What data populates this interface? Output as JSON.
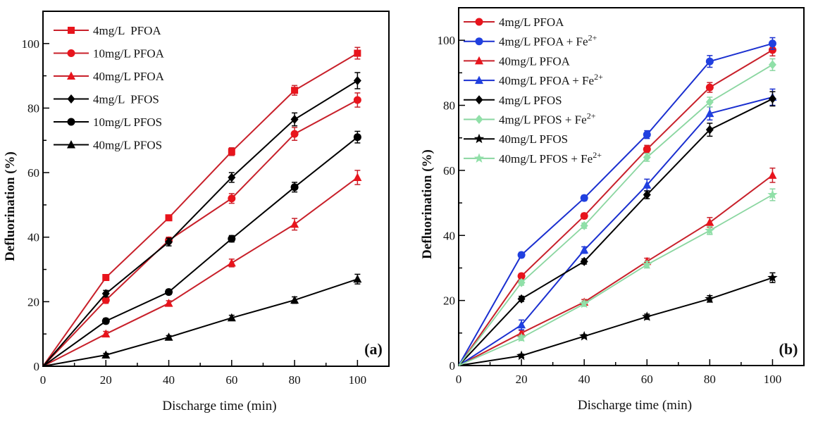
{
  "chart_data": [
    {
      "type": "line",
      "panel_label": "(a)",
      "xlabel": "Discharge time (min)",
      "ylabel": "Defluorination (%)",
      "xlim": [
        0,
        110
      ],
      "ylim": [
        0,
        110
      ],
      "xticks": [
        0,
        20,
        40,
        60,
        80,
        100
      ],
      "yticks": [
        0,
        20,
        40,
        60,
        80,
        100
      ],
      "grid": false,
      "legend_position": "top-left",
      "x": [
        0,
        20,
        40,
        60,
        80,
        100
      ],
      "series": [
        {
          "name": "4mg/L  PFOA",
          "color": "#e8141c",
          "line_color": "#c8202a",
          "marker": "square",
          "values": [
            0,
            27.5,
            46,
            66.5,
            85.5,
            97
          ],
          "errors": [
            0,
            0.8,
            0.8,
            1.2,
            1.5,
            1.8
          ]
        },
        {
          "name": "10mg/L PFOA",
          "color": "#e8141c",
          "line_color": "#c8202a",
          "marker": "circle",
          "values": [
            0,
            20.5,
            39,
            52,
            72,
            82.5
          ],
          "errors": [
            0,
            1.0,
            1.0,
            1.5,
            2.0,
            2.2
          ]
        },
        {
          "name": "40mg/L PFOA",
          "color": "#e8141c",
          "line_color": "#c8202a",
          "marker": "triangle",
          "values": [
            0,
            10,
            19.5,
            32,
            44,
            58.5
          ],
          "errors": [
            0,
            0.8,
            0.8,
            1.2,
            1.8,
            2.2
          ]
        },
        {
          "name": "4mg/L  PFOS",
          "color": "#000000",
          "line_color": "#000000",
          "marker": "diamond",
          "values": [
            0,
            22.5,
            38.5,
            58.5,
            76.5,
            88.5
          ],
          "errors": [
            0,
            1.0,
            1.2,
            1.5,
            2.0,
            2.5
          ]
        },
        {
          "name": "10mg/L PFOS",
          "color": "#000000",
          "line_color": "#000000",
          "marker": "circle",
          "values": [
            0,
            14,
            23,
            39.5,
            55.5,
            71
          ],
          "errors": [
            0,
            0.8,
            0.8,
            1.0,
            1.5,
            1.8
          ]
        },
        {
          "name": "40mg/L PFOS",
          "color": "#000000",
          "line_color": "#000000",
          "marker": "triangle",
          "values": [
            0,
            3.5,
            9,
            15,
            20.5,
            27
          ],
          "errors": [
            0,
            0.5,
            0.5,
            0.8,
            1.0,
            1.5
          ]
        }
      ]
    },
    {
      "type": "line",
      "panel_label": "(b)",
      "xlabel": "Discharge time (min)",
      "ylabel": "Defluorination (%)",
      "xlim": [
        0,
        110
      ],
      "ylim": [
        0,
        110
      ],
      "xticks": [
        0,
        20,
        40,
        60,
        80,
        100
      ],
      "yticks": [
        0,
        20,
        40,
        60,
        80,
        100
      ],
      "grid": false,
      "legend_position": "top-left",
      "x": [
        0,
        20,
        40,
        60,
        80,
        100
      ],
      "series": [
        {
          "name": "4mg/L PFOA",
          "sup": "",
          "color": "#e8141c",
          "line_color": "#c8202a",
          "marker": "circle",
          "values": [
            0,
            27.5,
            46,
            66.5,
            85.5,
            97
          ],
          "errors": [
            0,
            0.8,
            0.8,
            1.2,
            1.5,
            1.8
          ]
        },
        {
          "name": "4mg/L PFOA + Fe",
          "sup": "2+",
          "color": "#2040e0",
          "line_color": "#1a2fd0",
          "marker": "circle",
          "values": [
            0,
            34,
            51.5,
            71,
            93.5,
            99
          ],
          "errors": [
            0,
            0.8,
            0.8,
            1.2,
            1.8,
            1.8
          ]
        },
        {
          "name": "40mg/L PFOA",
          "sup": "",
          "color": "#e8141c",
          "line_color": "#c8202a",
          "marker": "triangle",
          "values": [
            0,
            10,
            19.5,
            32,
            44,
            58.5
          ],
          "errors": [
            0,
            0.8,
            0.8,
            1.0,
            1.5,
            2.2
          ]
        },
        {
          "name": "40mg/L PFOA + Fe",
          "sup": "2+",
          "color": "#2040e0",
          "line_color": "#1a2fd0",
          "marker": "triangle",
          "values": [
            0,
            12.5,
            35.5,
            55.5,
            77.5,
            82.5
          ],
          "errors": [
            0,
            1.5,
            1.0,
            1.8,
            2.0,
            2.5
          ]
        },
        {
          "name": "4mg/L PFOS",
          "sup": "",
          "color": "#000000",
          "line_color": "#000000",
          "marker": "diamond",
          "values": [
            0,
            20.5,
            32,
            52.5,
            72.5,
            82
          ],
          "errors": [
            0,
            0.8,
            0.8,
            1.2,
            2.0,
            2.2
          ]
        },
        {
          "name": "4mg/L PFOS + Fe",
          "sup": "2+",
          "color": "#90e0a8",
          "line_color": "#8ad6a0",
          "marker": "diamond",
          "values": [
            0,
            25.5,
            43,
            64,
            81,
            92.5
          ],
          "errors": [
            0,
            0.8,
            0.8,
            1.2,
            1.5,
            1.8
          ]
        },
        {
          "name": "40mg/L PFOS",
          "sup": "",
          "color": "#000000",
          "line_color": "#000000",
          "marker": "star",
          "values": [
            0,
            3,
            9,
            15,
            20.5,
            27
          ],
          "errors": [
            0,
            0.5,
            0.5,
            0.8,
            1.0,
            1.5
          ]
        },
        {
          "name": "40mg/L PFOS + Fe",
          "sup": "2+",
          "color": "#90e0a8",
          "line_color": "#8ad6a0",
          "marker": "star",
          "values": [
            0,
            8.5,
            19,
            31,
            41.5,
            52.5
          ],
          "errors": [
            0,
            0.8,
            0.8,
            1.0,
            1.2,
            1.8
          ]
        }
      ]
    }
  ]
}
